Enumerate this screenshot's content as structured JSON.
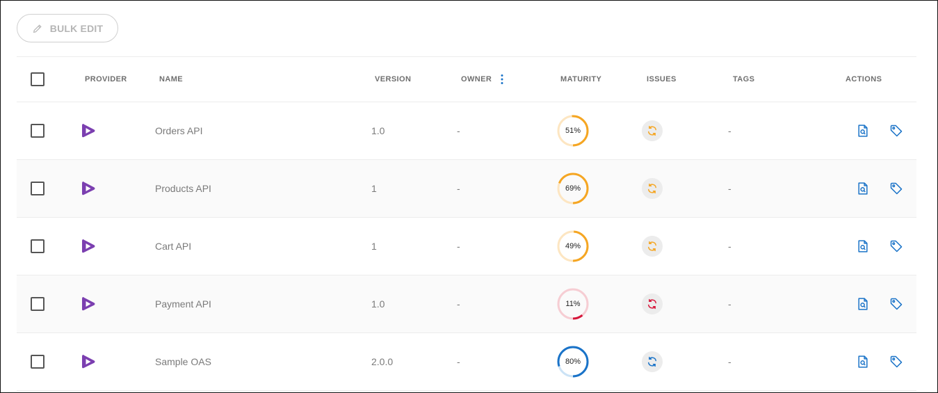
{
  "toolbar": {
    "bulk_edit_label": "BULK EDIT"
  },
  "columns": {
    "provider": "PROVIDER",
    "name": "NAME",
    "version": "VERSION",
    "owner": "OWNER",
    "maturity": "MATURITY",
    "issues": "ISSUES",
    "tags": "TAGS",
    "actions": "ACTIONS"
  },
  "colors": {
    "provider": "#7b3fb0",
    "action": "#1a73c8",
    "orange": "#f5a623",
    "orange_track": "#fde6c2",
    "red": "#d6163a",
    "red_track": "#f6cdd3",
    "blue": "#1a73c8",
    "blue_track": "#cce3f6"
  },
  "rows": [
    {
      "name": "Orders API",
      "version": "1.0",
      "owner": "-",
      "maturity": 51,
      "maturity_label": "51%",
      "status": "orange",
      "tags": "-"
    },
    {
      "name": "Products API",
      "version": "1",
      "owner": "-",
      "maturity": 69,
      "maturity_label": "69%",
      "status": "orange",
      "tags": "-"
    },
    {
      "name": "Cart API",
      "version": "1",
      "owner": "-",
      "maturity": 49,
      "maturity_label": "49%",
      "status": "orange",
      "tags": "-"
    },
    {
      "name": "Payment API",
      "version": "1.0",
      "owner": "-",
      "maturity": 11,
      "maturity_label": "11%",
      "status": "red",
      "tags": "-"
    },
    {
      "name": "Sample OAS",
      "version": "2.0.0",
      "owner": "-",
      "maturity": 80,
      "maturity_label": "80%",
      "status": "blue",
      "tags": "-"
    }
  ]
}
